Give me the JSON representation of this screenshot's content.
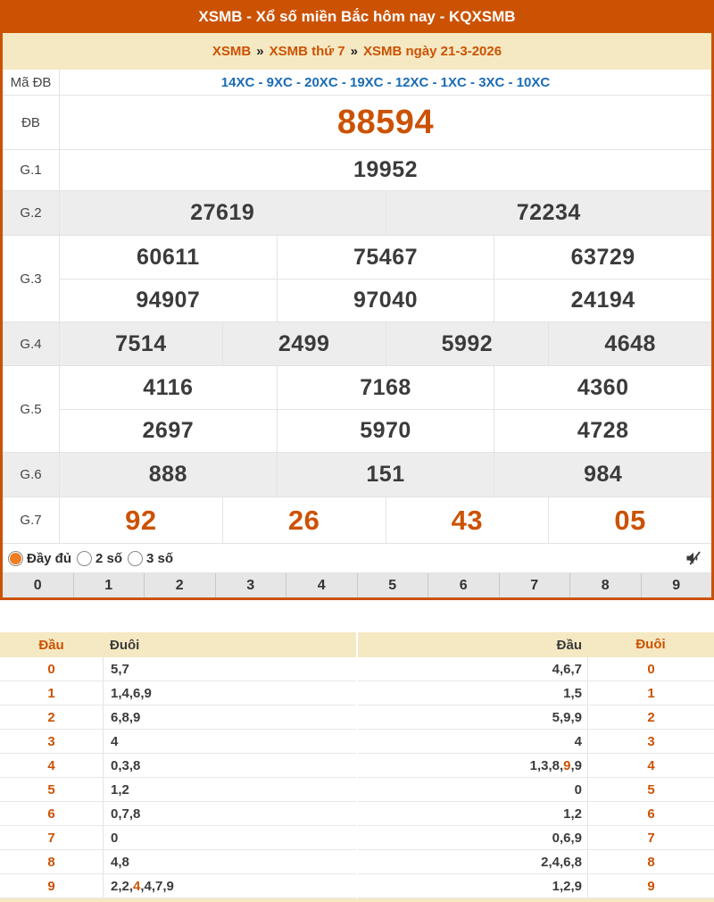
{
  "colors": {
    "brand_orange": "#cc5203",
    "radio_orange": "#ef7d23",
    "cream": "#f5e9c3",
    "code_blue": "#1a6bb5",
    "highlight_orange": "#cc5203"
  },
  "header": {
    "title": "XSMB - Xổ số miền Bắc hôm nay - KQXSMB"
  },
  "breadcrumb": {
    "separator": "»",
    "items": [
      "XSMB",
      "XSMB thứ 7",
      "XSMB ngày 21-3-2026"
    ]
  },
  "results": {
    "ma_db": {
      "label": "Mã ĐB",
      "value": "14XC - 9XC - 20XC - 19XC - 12XC - 1XC - 3XC - 10XC"
    },
    "prize_rows": [
      {
        "key": "db",
        "label": "ĐB",
        "shade": false,
        "lines": [
          [
            "88594"
          ]
        ]
      },
      {
        "key": "g1",
        "label": "G.1",
        "shade": false,
        "lines": [
          [
            "19952"
          ]
        ]
      },
      {
        "key": "g2",
        "label": "G.2",
        "shade": true,
        "lines": [
          [
            "27619",
            "72234"
          ]
        ]
      },
      {
        "key": "g3",
        "label": "G.3",
        "shade": false,
        "lines": [
          [
            "60611",
            "75467",
            "63729"
          ],
          [
            "94907",
            "97040",
            "24194"
          ]
        ]
      },
      {
        "key": "g4",
        "label": "G.4",
        "shade": true,
        "lines": [
          [
            "7514",
            "2499",
            "5992",
            "4648"
          ]
        ]
      },
      {
        "key": "g5",
        "label": "G.5",
        "shade": false,
        "lines": [
          [
            "4116",
            "7168",
            "4360"
          ],
          [
            "2697",
            "5970",
            "4728"
          ]
        ]
      },
      {
        "key": "g6",
        "label": "G.6",
        "shade": true,
        "lines": [
          [
            "888",
            "151",
            "984"
          ]
        ]
      },
      {
        "key": "g7",
        "label": "G.7",
        "shade": false,
        "lines": [
          [
            "92",
            "26",
            "43",
            "05"
          ]
        ]
      }
    ]
  },
  "view_options": {
    "options": [
      {
        "label": "Đầy đủ",
        "selected": true
      },
      {
        "label": "2 số",
        "selected": false
      },
      {
        "label": "3 số",
        "selected": false
      }
    ],
    "mute_icon": "muted-speaker-icon"
  },
  "digit_strip": [
    "0",
    "1",
    "2",
    "3",
    "4",
    "5",
    "6",
    "7",
    "8",
    "9"
  ],
  "loto": {
    "headers": {
      "dau": "Đầu",
      "duoi": "Đuôi"
    },
    "left_rows": [
      {
        "digit": "0",
        "parts": [
          {
            "text": "5,7",
            "highlight": false
          }
        ]
      },
      {
        "digit": "1",
        "parts": [
          {
            "text": "1,4,6,9",
            "highlight": false
          }
        ]
      },
      {
        "digit": "2",
        "parts": [
          {
            "text": "6,8,9",
            "highlight": false
          }
        ]
      },
      {
        "digit": "3",
        "parts": [
          {
            "text": "4",
            "highlight": false
          }
        ]
      },
      {
        "digit": "4",
        "parts": [
          {
            "text": "0,3,8",
            "highlight": false
          }
        ]
      },
      {
        "digit": "5",
        "parts": [
          {
            "text": "1,2",
            "highlight": false
          }
        ]
      },
      {
        "digit": "6",
        "parts": [
          {
            "text": "0,7,8",
            "highlight": false
          }
        ]
      },
      {
        "digit": "7",
        "parts": [
          {
            "text": "0",
            "highlight": false
          }
        ]
      },
      {
        "digit": "8",
        "parts": [
          {
            "text": "4,8",
            "highlight": false
          }
        ]
      },
      {
        "digit": "9",
        "parts": [
          {
            "text": "2,2,",
            "highlight": false
          },
          {
            "text": "4",
            "highlight": true
          },
          {
            "text": ",4,7,9",
            "highlight": false
          }
        ]
      }
    ],
    "right_rows": [
      {
        "digit": "0",
        "parts": [
          {
            "text": "4,6,7",
            "highlight": false
          }
        ]
      },
      {
        "digit": "1",
        "parts": [
          {
            "text": "1,5",
            "highlight": false
          }
        ]
      },
      {
        "digit": "2",
        "parts": [
          {
            "text": "5,9,9",
            "highlight": false
          }
        ]
      },
      {
        "digit": "3",
        "parts": [
          {
            "text": "4",
            "highlight": false
          }
        ]
      },
      {
        "digit": "4",
        "parts": [
          {
            "text": "1,3,8,",
            "highlight": false
          },
          {
            "text": "9",
            "highlight": true
          },
          {
            "text": ",9",
            "highlight": false
          }
        ]
      },
      {
        "digit": "5",
        "parts": [
          {
            "text": "0",
            "highlight": false
          }
        ]
      },
      {
        "digit": "6",
        "parts": [
          {
            "text": "1,2",
            "highlight": false
          }
        ]
      },
      {
        "digit": "7",
        "parts": [
          {
            "text": "0,6,9",
            "highlight": false
          }
        ]
      },
      {
        "digit": "8",
        "parts": [
          {
            "text": "2,4,6,8",
            "highlight": false
          }
        ]
      },
      {
        "digit": "9",
        "parts": [
          {
            "text": "1,2,9",
            "highlight": false
          }
        ]
      }
    ]
  }
}
